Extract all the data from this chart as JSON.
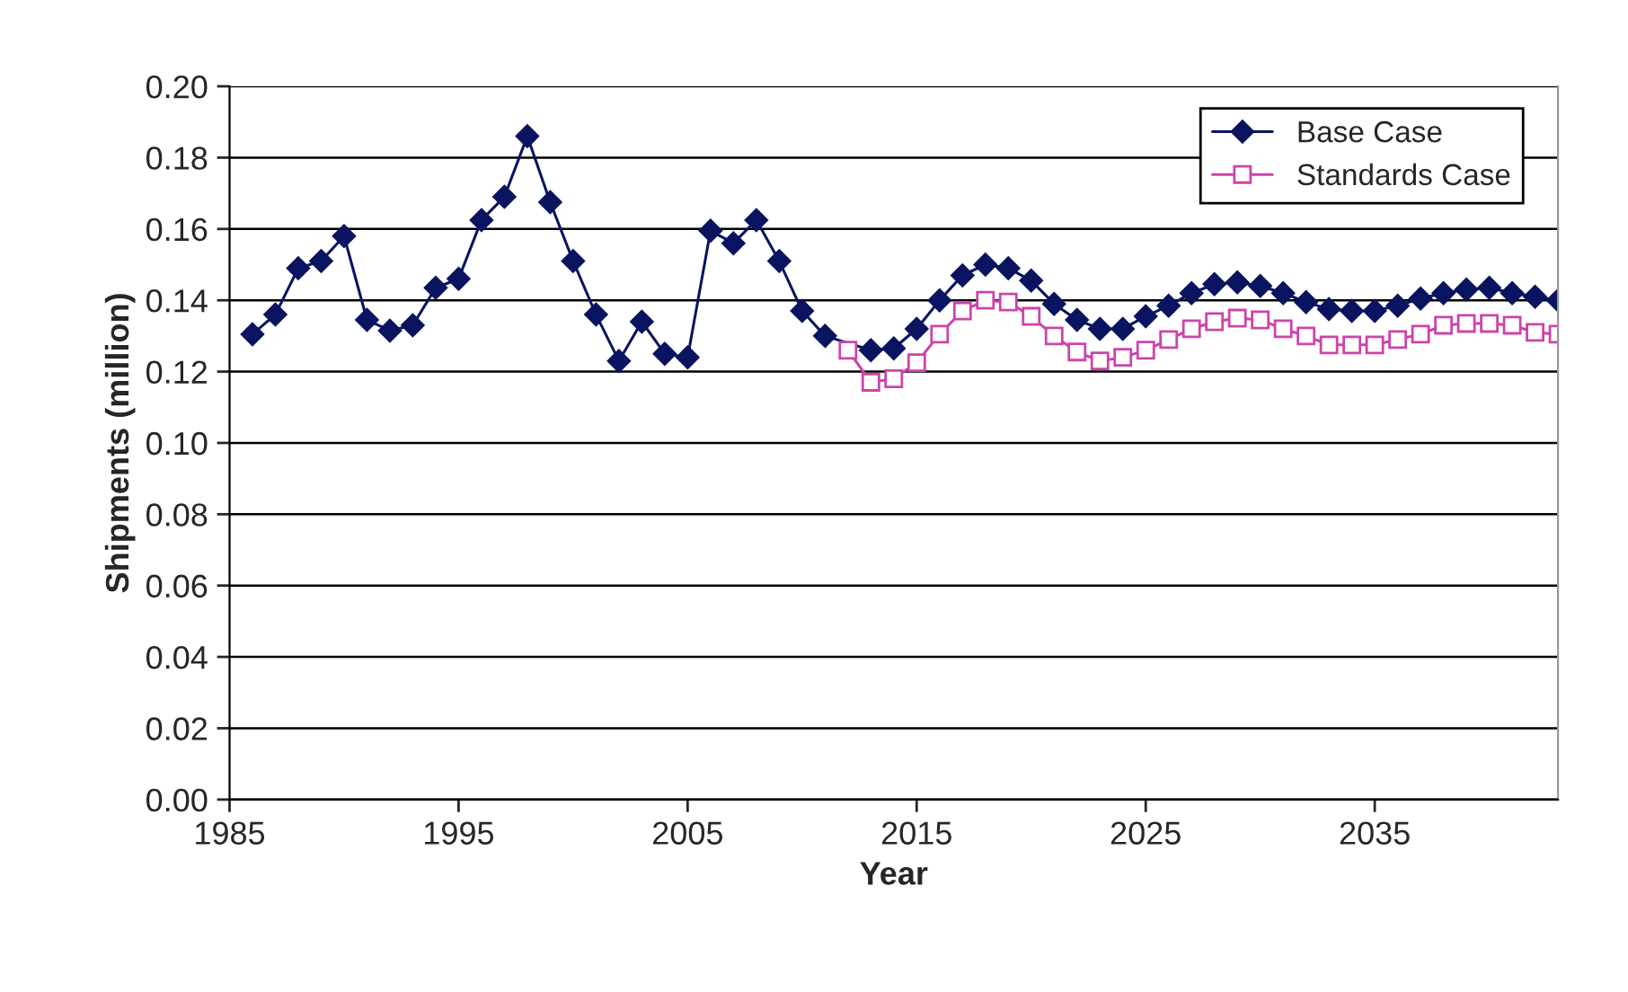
{
  "chart_data": {
    "type": "line",
    "xlabel": "Year",
    "ylabel": "Shipments (million)",
    "xlim": [
      1985,
      2043
    ],
    "xticks": [
      1985,
      1995,
      2005,
      2015,
      2025,
      2035
    ],
    "ylim": [
      0,
      0.2
    ],
    "yticks": [
      {
        "value": 0,
        "label": "0.00"
      },
      {
        "value": 0.02,
        "label": "0.02"
      },
      {
        "value": 0.04,
        "label": "0.04"
      },
      {
        "value": 0.06,
        "label": "0.06"
      },
      {
        "value": 0.08,
        "label": "0.08"
      },
      {
        "value": 0.1,
        "label": "0.10"
      },
      {
        "value": 0.12,
        "label": "0.12"
      },
      {
        "value": 0.14,
        "label": "0.14"
      },
      {
        "value": 0.16,
        "label": "0.16"
      },
      {
        "value": 0.18,
        "label": "0.18"
      },
      {
        "value": 0.2,
        "label": "0.20"
      }
    ],
    "grid": "y",
    "legend": "top right",
    "line_style": "solid",
    "series": [
      {
        "name": "Base Case",
        "color": "#0a1460",
        "marker": "diamond",
        "x": [
          1986,
          1987,
          1988,
          1989,
          1990,
          1991,
          1992,
          1993,
          1994,
          1995,
          1996,
          1997,
          1998,
          1999,
          2000,
          2001,
          2002,
          2003,
          2004,
          2005,
          2006,
          2007,
          2008,
          2009,
          2010,
          2011,
          2012,
          2013,
          2014,
          2015,
          2016,
          2017,
          2018,
          2019,
          2020,
          2021,
          2022,
          2023,
          2024,
          2025,
          2026,
          2027,
          2028,
          2029,
          2030,
          2031,
          2032,
          2033,
          2034,
          2035,
          2036,
          2037,
          2038,
          2039,
          2040,
          2041,
          2042,
          2043
        ],
        "values": [
          0.1305,
          0.136,
          0.149,
          0.151,
          0.158,
          0.1345,
          0.1315,
          0.133,
          0.1435,
          0.146,
          0.1625,
          0.169,
          0.186,
          0.1675,
          0.151,
          0.136,
          0.123,
          0.134,
          0.125,
          0.124,
          0.1595,
          0.156,
          0.1625,
          0.151,
          0.137,
          0.13,
          null,
          0.126,
          0.1265,
          0.132,
          0.14,
          0.147,
          0.15,
          0.149,
          0.1455,
          0.139,
          0.1345,
          0.132,
          0.132,
          0.1355,
          0.1385,
          0.142,
          0.1445,
          0.145,
          0.144,
          0.142,
          0.1395,
          0.1375,
          0.137,
          0.137,
          0.1385,
          0.1405,
          0.142,
          0.143,
          0.1435,
          0.142,
          0.141,
          0.14
        ]
      },
      {
        "name": "Standards Case",
        "color": "#cc44aa",
        "marker": "square",
        "x": [
          2012,
          2013,
          2014,
          2015,
          2016,
          2017,
          2018,
          2019,
          2020,
          2021,
          2022,
          2023,
          2024,
          2025,
          2026,
          2027,
          2028,
          2029,
          2030,
          2031,
          2032,
          2033,
          2034,
          2035,
          2036,
          2037,
          2038,
          2039,
          2040,
          2041,
          2042,
          2043
        ],
        "values": [
          0.126,
          0.117,
          0.118,
          0.1225,
          0.1305,
          0.137,
          0.14,
          0.1395,
          0.1355,
          0.13,
          0.1255,
          0.123,
          0.124,
          0.126,
          0.129,
          0.132,
          0.134,
          0.135,
          0.1345,
          0.132,
          0.13,
          0.1275,
          0.1275,
          0.1275,
          0.129,
          0.1305,
          0.133,
          0.1335,
          0.1335,
          0.133,
          0.131,
          0.1305
        ]
      }
    ]
  }
}
